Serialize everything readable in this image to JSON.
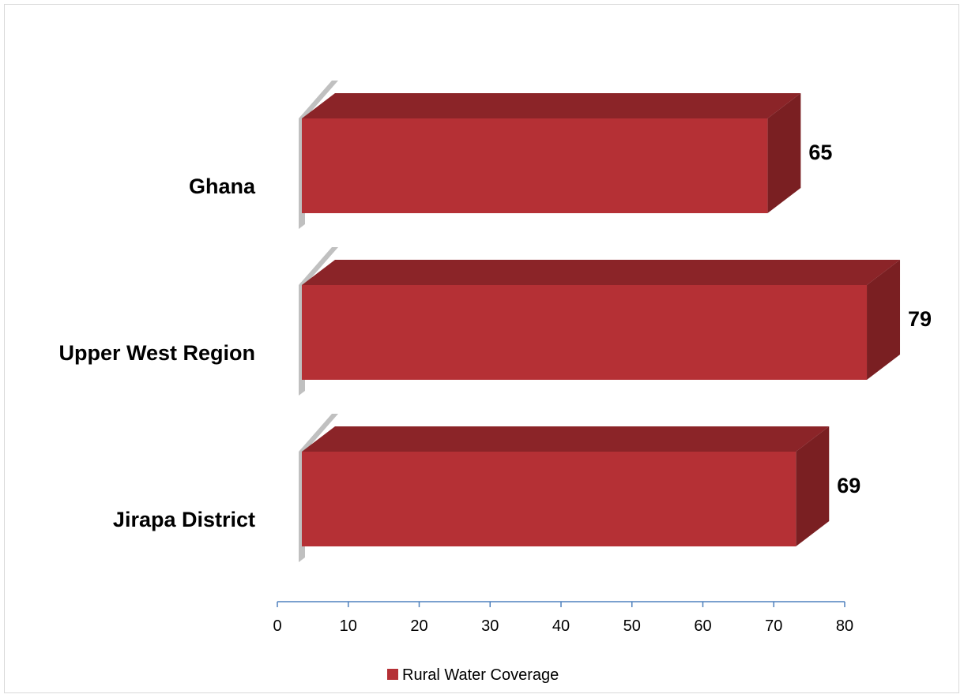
{
  "chart_data": {
    "type": "bar",
    "orientation": "horizontal",
    "style": "3d",
    "categories": [
      "Ghana",
      "Upper West Region",
      "Jirapa District"
    ],
    "series": [
      {
        "name": "Rural Water Coverage",
        "values": [
          65,
          79,
          69
        ],
        "color": "#b53035"
      }
    ],
    "xlim": [
      0,
      80
    ],
    "xticks": [
      0,
      10,
      20,
      30,
      40,
      50,
      60,
      70,
      80
    ],
    "grid": false,
    "legend_position": "bottom",
    "colors": {
      "bar_front": "#b53035",
      "bar_top": "#8b2428",
      "bar_side": "#7a1f22",
      "axis": "#4f81bd"
    }
  }
}
